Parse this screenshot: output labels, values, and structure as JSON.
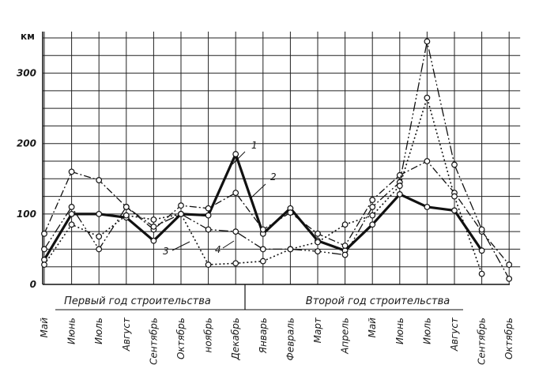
{
  "chart_data": {
    "type": "line",
    "ylabel": "км",
    "ylim": [
      0,
      350
    ],
    "y_ticks": [
      0,
      100,
      200,
      300
    ],
    "y_tick_labels": [
      "0",
      "100",
      "200",
      "300"
    ],
    "grid": true,
    "categories": [
      "Май",
      "Июнь",
      "Июль",
      "Август",
      "Сентябрь",
      "Октябрь",
      "ноябрь",
      "Декабрь",
      "Январь",
      "Февраль",
      "Март",
      "Апрель",
      "Май",
      "Июнь",
      "Июль",
      "Август",
      "Сентябрь",
      "Октябрь"
    ],
    "x_groups": [
      {
        "label": "Первый год строительства",
        "from": 0,
        "to": 7
      },
      {
        "label": "Второй год строительства",
        "from": 8,
        "to": 17
      }
    ],
    "series": [
      {
        "name": "1",
        "values": [
          35,
          100,
          100,
          95,
          62,
          100,
          98,
          185,
          72,
          108,
          62,
          48,
          85,
          128,
          110,
          105,
          48,
          null
        ]
      },
      {
        "name": "2",
        "values": [
          72,
          160,
          148,
          110,
          78,
          112,
          108,
          130,
          78,
          102,
          72,
          55,
          120,
          155,
          175,
          130,
          75,
          28
        ]
      },
      {
        "name": "3",
        "values": [
          50,
          110,
          50,
          110,
          82,
          100,
          78,
          75,
          50,
          50,
          47,
          42,
          110,
          145,
          345,
          170,
          78,
          8
        ]
      },
      {
        "name": "4",
        "values": [
          28,
          85,
          68,
          98,
          92,
          100,
          28,
          30,
          33,
          50,
          60,
          85,
          98,
          140,
          265,
          125,
          15,
          null
        ]
      }
    ]
  },
  "callouts": [
    "1",
    "2",
    "3",
    "4"
  ]
}
